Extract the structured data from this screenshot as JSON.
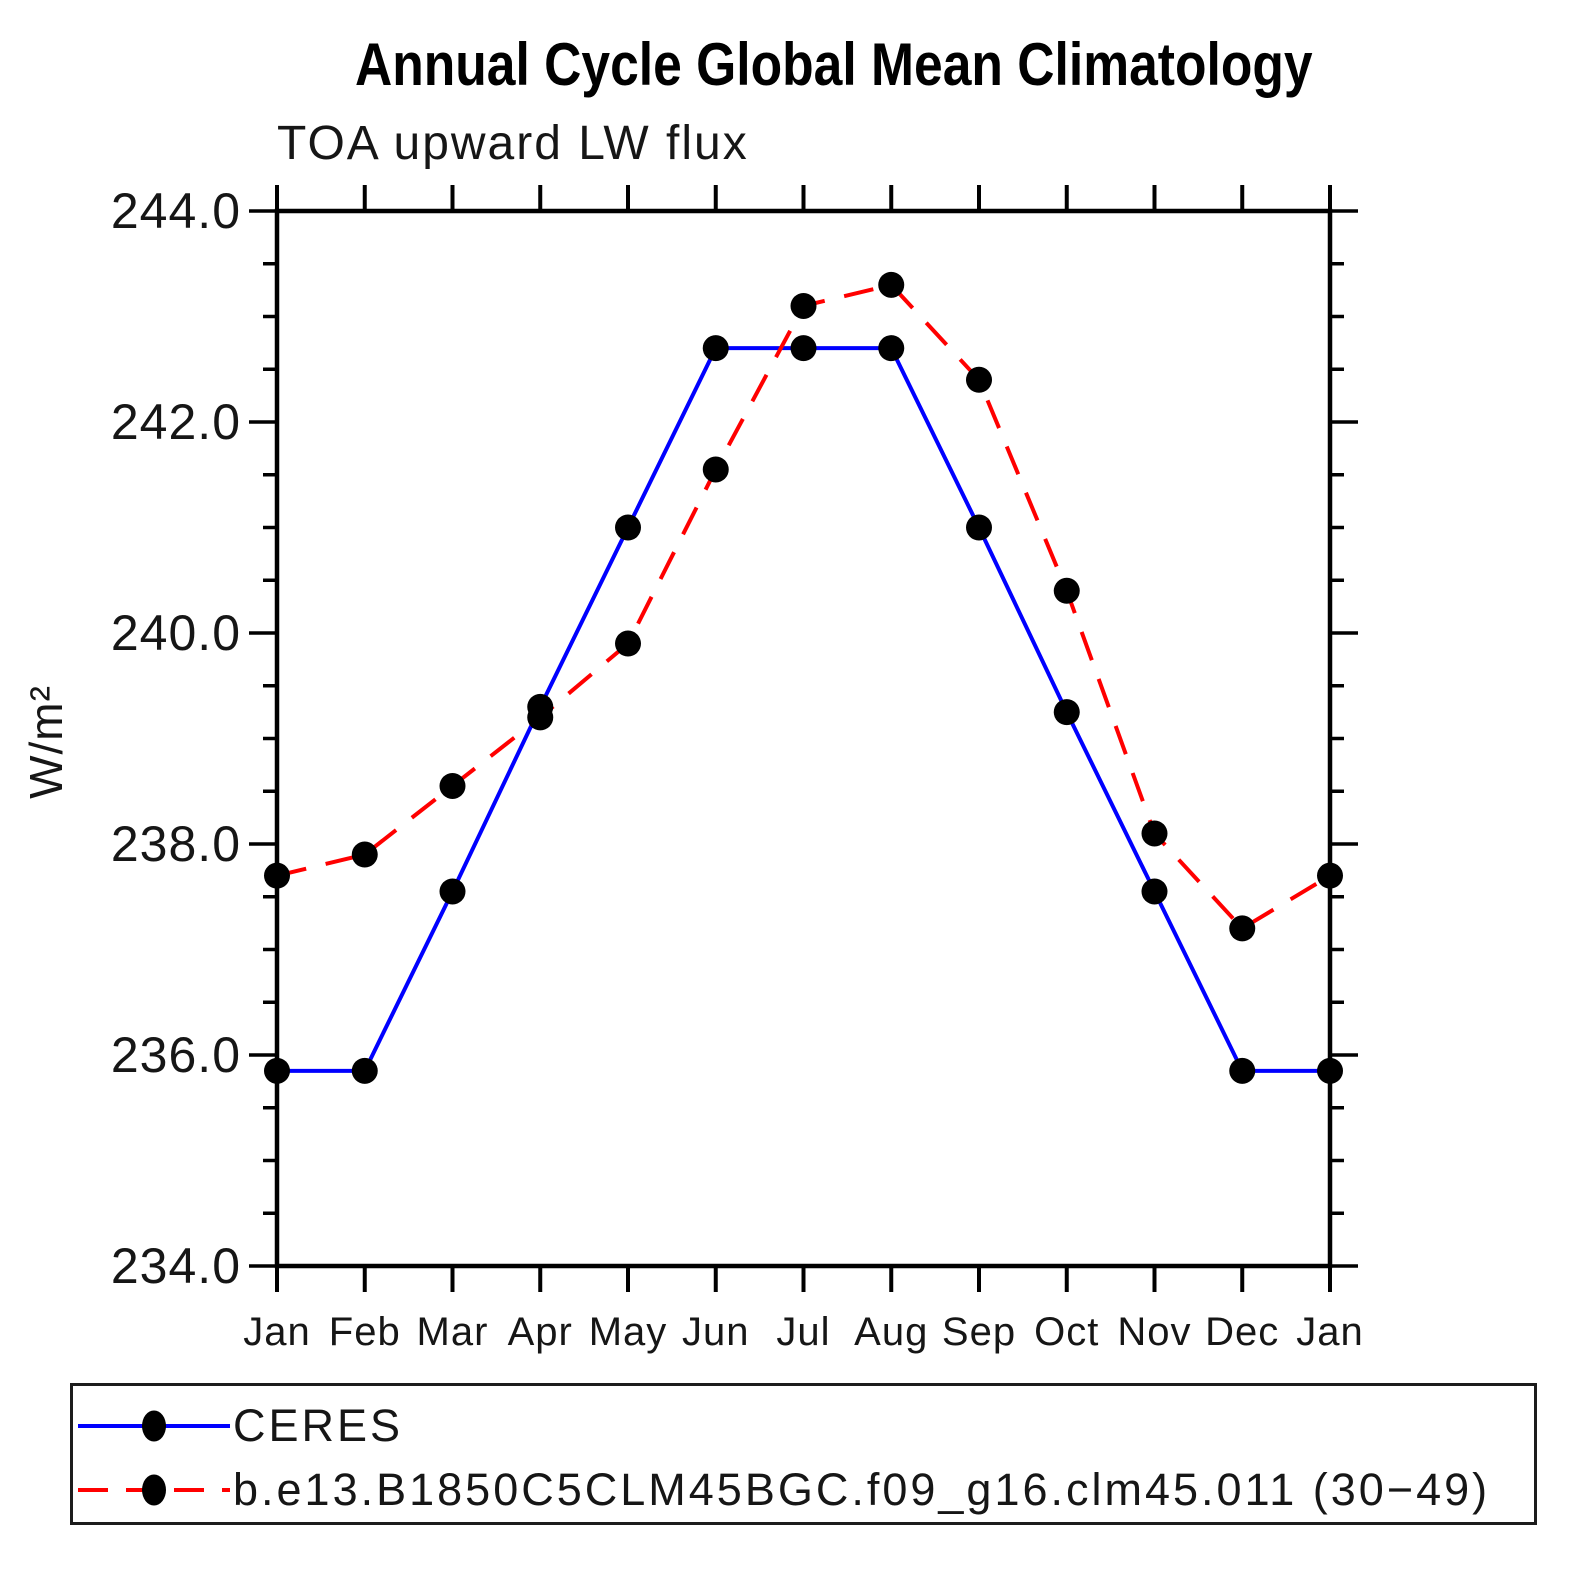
{
  "title": "Annual Cycle Global Mean Climatology",
  "subtitle": "TOA upward LW flux",
  "ylabel": "W/m²",
  "chart_data": {
    "type": "line",
    "categories": [
      "Jan",
      "Feb",
      "Mar",
      "Apr",
      "May",
      "Jun",
      "Jul",
      "Aug",
      "Sep",
      "Oct",
      "Nov",
      "Dec",
      "Jan"
    ],
    "series": [
      {
        "name": "CERES",
        "color": "#0000ff",
        "line_style": "solid",
        "marker": "filled-black-circle",
        "values": [
          235.85,
          235.85,
          237.55,
          239.3,
          241.0,
          242.7,
          242.7,
          242.7,
          241.0,
          239.25,
          237.55,
          235.85,
          235.85
        ]
      },
      {
        "name": "b.e13.B1850C5CLM45BGC.f09_g16.clm45.011 (30−49)",
        "color": "#ff0000",
        "line_style": "dashed",
        "marker": "filled-black-circle",
        "values": [
          237.7,
          237.9,
          238.55,
          239.2,
          239.9,
          241.55,
          243.1,
          243.3,
          242.4,
          240.4,
          238.1,
          237.2,
          237.7
        ]
      }
    ],
    "ylim": [
      234.0,
      244.0
    ],
    "ytick_labels": [
      "244.0",
      "242.0",
      "240.0",
      "238.0",
      "236.0",
      "234.0"
    ],
    "ytick_major_step": 2.0,
    "ytick_minor_step": 0.5,
    "grid": false,
    "legend_position": "bottom-box"
  }
}
